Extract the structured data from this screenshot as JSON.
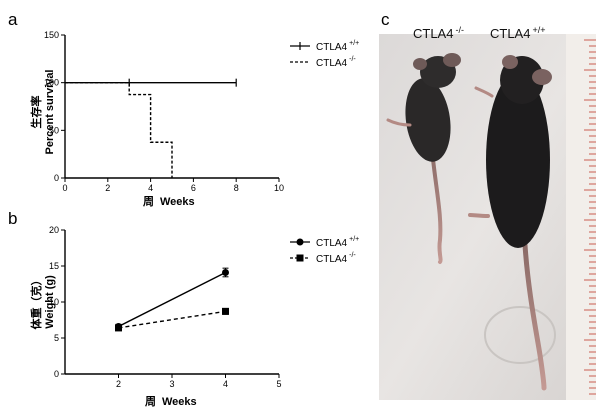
{
  "panels": {
    "a": "a",
    "b": "b",
    "c": "c"
  },
  "photo": {
    "label_left": "CTLA4",
    "label_left_sup": "-/-",
    "label_right": "CTLA4",
    "label_right_sup": "+/+"
  },
  "chart_data": [
    {
      "type": "line",
      "panel": "a",
      "chart_kind": "kaplan-meier",
      "ylabel_cn": "生存率",
      "ylabel": "Percent survival",
      "xlabel_cn": "周",
      "xlabel": "Weeks",
      "xlim": [
        0,
        10
      ],
      "ylim": [
        0,
        150
      ],
      "xticks": [
        "0",
        "2",
        "4",
        "6",
        "8",
        "10"
      ],
      "yticks": [
        "0",
        "50",
        "100",
        "150"
      ],
      "legend_position": "top-right",
      "series": [
        {
          "name": "CTLA4",
          "name_sup": "+/+",
          "style": "solid",
          "steps": [
            [
              0,
              100
            ],
            [
              8,
              100
            ]
          ],
          "censor": [
            [
              8,
              100
            ]
          ]
        },
        {
          "name": "CTLA4",
          "name_sup": "-/-",
          "style": "dashed",
          "steps": [
            [
              0,
              100
            ],
            [
              3,
              100
            ],
            [
              3,
              87.5
            ],
            [
              4,
              87.5
            ],
            [
              4,
              37.5
            ],
            [
              5,
              37.5
            ],
            [
              5,
              0
            ]
          ],
          "censor": [
            [
              3,
              100
            ]
          ]
        }
      ]
    },
    {
      "type": "line",
      "panel": "b",
      "ylabel_cn": "体重（克）",
      "ylabel": "Weight (g)",
      "xlabel_cn": "周",
      "xlabel": "Weeks",
      "xlim": [
        1,
        5
      ],
      "ylim": [
        0,
        20
      ],
      "xticks": [
        "2",
        "3",
        "4",
        "5"
      ],
      "yticks": [
        "0",
        "5",
        "10",
        "15",
        "20"
      ],
      "legend_position": "top-right",
      "x": [
        2,
        4
      ],
      "series": [
        {
          "name": "CTLA4",
          "name_sup": "+/+",
          "style": "solid",
          "marker": "circle",
          "values": [
            6.6,
            14.1
          ],
          "errors": [
            0.3,
            0.6
          ]
        },
        {
          "name": "CTLA4",
          "name_sup": "-/-",
          "style": "dashed",
          "marker": "square",
          "values": [
            6.4,
            8.7
          ],
          "errors": [
            0.2,
            0.4
          ]
        }
      ]
    }
  ]
}
